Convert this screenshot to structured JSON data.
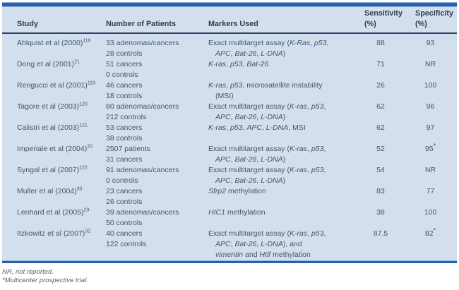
{
  "colors": {
    "page_bg": "#ffffff",
    "panel_bg": "#d4dfee",
    "top_bar": "#2b5fad",
    "light_edge": "#8fb3dc",
    "header_rule": "#26456e",
    "header_text": "#2d3d56",
    "body_text": "#46536c",
    "bottom_bar": "#2b5fad",
    "footnote_text": "#5a6474"
  },
  "table": {
    "headers": [
      {
        "label": "Study",
        "sub": ""
      },
      {
        "label": "Number of Patients",
        "sub": ""
      },
      {
        "label": "Markers Used",
        "sub": ""
      },
      {
        "label": "Sensitivity",
        "sub": "(%)"
      },
      {
        "label": "Specificity",
        "sub": "(%)"
      }
    ],
    "rows": [
      {
        "study": "Ahlquist et al (2000)",
        "ref": "116",
        "patients": [
          "33 adenomas/cancers",
          "28 controls"
        ],
        "markers": [
          [
            {
              "t": "Exact multitarget assay (",
              "i": false
            },
            {
              "t": "K-Ras",
              "i": true
            },
            {
              "t": ", ",
              "i": false
            },
            {
              "t": "p53",
              "i": true
            },
            {
              "t": ",",
              "i": false
            }
          ],
          [
            {
              "t": "APC",
              "i": true
            },
            {
              "t": ", ",
              "i": false
            },
            {
              "t": "Bat-26",
              "i": true
            },
            {
              "t": ", ",
              "i": false
            },
            {
              "t": "L-DNA",
              "i": true
            },
            {
              "t": ")",
              "i": false
            }
          ]
        ],
        "sens": "88",
        "spec": "93"
      },
      {
        "study": "Dong et al (2001)",
        "ref": "21",
        "patients": [
          "51 cancers",
          "0 controls"
        ],
        "markers": [
          [
            {
              "t": "K-ras",
              "i": true
            },
            {
              "t": ", ",
              "i": false
            },
            {
              "t": "p53",
              "i": true
            },
            {
              "t": ", ",
              "i": false
            },
            {
              "t": "Bat-26",
              "i": true
            }
          ]
        ],
        "sens": "71",
        "spec": "NR"
      },
      {
        "study": "Rengucci et al (2001)",
        "ref": "119",
        "patients": [
          "46 cancers",
          "18 controls"
        ],
        "markers": [
          [
            {
              "t": "K-ras",
              "i": true
            },
            {
              "t": ", ",
              "i": false
            },
            {
              "t": "p53",
              "i": true
            },
            {
              "t": ", microsatellite instability",
              "i": false
            }
          ],
          [
            {
              "t": "(MSI)",
              "i": false
            }
          ]
        ],
        "sens": "26",
        "spec": "100"
      },
      {
        "study": "Tagore et al (2003)",
        "ref": "120",
        "patients": [
          "80 adenomas/cancers",
          "212 controls"
        ],
        "markers": [
          [
            {
              "t": "Exact multitarget assay (",
              "i": false
            },
            {
              "t": "K-ras",
              "i": true
            },
            {
              "t": ", ",
              "i": false
            },
            {
              "t": "p53",
              "i": true
            },
            {
              "t": ",",
              "i": false
            }
          ],
          [
            {
              "t": "APC",
              "i": true
            },
            {
              "t": ", ",
              "i": false
            },
            {
              "t": "Bat-26",
              "i": true
            },
            {
              "t": ", ",
              "i": false
            },
            {
              "t": "L-DNA",
              "i": true
            },
            {
              "t": ")",
              "i": false
            }
          ]
        ],
        "sens": "62",
        "spec": "96"
      },
      {
        "study": "Calistri et al (2003)",
        "ref": "121",
        "patients": [
          "53 cancers",
          "38 controls"
        ],
        "markers": [
          [
            {
              "t": "K-ras",
              "i": true
            },
            {
              "t": ", ",
              "i": false
            },
            {
              "t": "p53",
              "i": true
            },
            {
              "t": ", ",
              "i": false
            },
            {
              "t": "APC",
              "i": true
            },
            {
              "t": ", ",
              "i": false
            },
            {
              "t": "L-DNA",
              "i": true
            },
            {
              "t": ", MSI",
              "i": false
            }
          ]
        ],
        "sens": "62",
        "spec": "97"
      },
      {
        "study": "Imperiale et al (2004)",
        "ref": "20",
        "patients": [
          "2507 patients",
          "31 cancers"
        ],
        "markers": [
          [
            {
              "t": "Exact multitarget assay (",
              "i": false
            },
            {
              "t": "K-ras",
              "i": true
            },
            {
              "t": ", ",
              "i": false
            },
            {
              "t": "p53",
              "i": true
            },
            {
              "t": ",",
              "i": false
            }
          ],
          [
            {
              "t": "APC",
              "i": true
            },
            {
              "t": ", ",
              "i": false
            },
            {
              "t": "Bat-26",
              "i": true
            },
            {
              "t": ", ",
              "i": false
            },
            {
              "t": "L-DNA",
              "i": true
            },
            {
              "t": ")",
              "i": false
            }
          ]
        ],
        "sens": "52",
        "spec": "95*"
      },
      {
        "study": "Syngal et al (2007)",
        "ref": "122",
        "patients": [
          "91 adenomas/cancers",
          "0 controls"
        ],
        "markers": [
          [
            {
              "t": "Exact multitarget assay (",
              "i": false
            },
            {
              "t": "K-ras",
              "i": true
            },
            {
              "t": ", ",
              "i": false
            },
            {
              "t": "p53",
              "i": true
            },
            {
              "t": ",",
              "i": false
            }
          ],
          [
            {
              "t": "APC",
              "i": true
            },
            {
              "t": ", ",
              "i": false
            },
            {
              "t": "Bat-26",
              "i": true
            },
            {
              "t": ", ",
              "i": false
            },
            {
              "t": "L-DNA",
              "i": true
            },
            {
              "t": ")",
              "i": false
            }
          ]
        ],
        "sens": "54",
        "spec": "NR"
      },
      {
        "study": "Muller et al (2004)",
        "ref": "30",
        "patients": [
          "23 cancers",
          "26 controls"
        ],
        "markers": [
          [
            {
              "t": "Sfrp2",
              "i": true
            },
            {
              "t": " methylation",
              "i": false
            }
          ]
        ],
        "sens": "83",
        "spec": "77"
      },
      {
        "study": "Lenhard et al (2005)",
        "ref": "29",
        "patients": [
          "39 adenomas/cancers",
          "50 controls"
        ],
        "markers": [
          [
            {
              "t": "HIC1",
              "i": true
            },
            {
              "t": " methylation",
              "i": false
            }
          ]
        ],
        "sens": "38",
        "spec": "100"
      },
      {
        "study": "Itzkowitz et al (2007)",
        "ref": "32",
        "patients": [
          "40 cancers",
          "122 controls"
        ],
        "markers": [
          [
            {
              "t": "Exact multitarget assay (",
              "i": false
            },
            {
              "t": "K-ras",
              "i": true
            },
            {
              "t": ", ",
              "i": false
            },
            {
              "t": "p53",
              "i": true
            },
            {
              "t": ",",
              "i": false
            }
          ],
          [
            {
              "t": "APC",
              "i": true
            },
            {
              "t": ", ",
              "i": false
            },
            {
              "t": "Bat-26",
              "i": true
            },
            {
              "t": ", ",
              "i": false
            },
            {
              "t": "L-DNA",
              "i": true
            },
            {
              "t": "), and",
              "i": false
            }
          ],
          [
            {
              "t": "vimentin",
              "i": true
            },
            {
              "t": " and ",
              "i": false
            },
            {
              "t": "Htlf",
              "i": true
            },
            {
              "t": " methylation",
              "i": false
            }
          ]
        ],
        "sens": "87.5",
        "spec": "82*"
      }
    ]
  },
  "footnotes": [
    "NR, not reported.",
    "*Multicenter prospective trial."
  ]
}
